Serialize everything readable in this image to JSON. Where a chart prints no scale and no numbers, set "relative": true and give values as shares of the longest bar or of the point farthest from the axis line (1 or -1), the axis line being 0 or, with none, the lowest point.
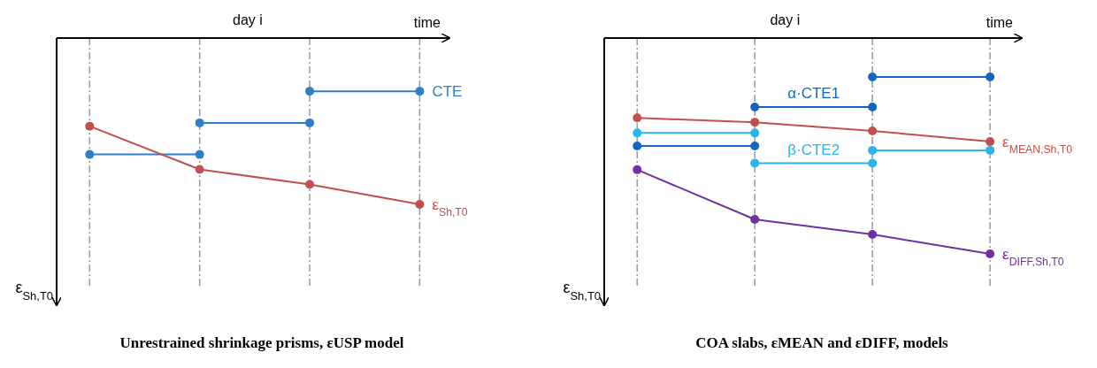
{
  "chart_data": [
    {
      "type": "line",
      "title": "Unrestrained shrinkage prisms, εUSP model",
      "xlabel": "time",
      "ylabel": "ε$_{Sh,T0}$",
      "annotations": [
        "day i"
      ],
      "relative": true,
      "categories": [
        null,
        null,
        null,
        null
      ],
      "grid": "x",
      "marker": "circle",
      "legend": "right",
      "series": [
        {
          "name": "CTE",
          "color": "#2f7fc8",
          "values": [
            null,
            null,
            -0.32,
            -0.32
          ]
        },
        {
          "color": "#2f7fc8",
          "values": [
            null,
            -0.51,
            -0.51,
            null
          ]
        },
        {
          "color": "#2f7fc8",
          "values": [
            -0.7,
            -0.7,
            null,
            null
          ]
        },
        {
          "name": "ε$_{Sh,T0}$",
          "color": "#c0504d",
          "values": [
            -0.53,
            -0.79,
            -0.88,
            -1
          ]
        }
      ]
    },
    {
      "type": "line",
      "title": "COA slabs, εMEAN and εDIFF, models",
      "xlabel": "time",
      "ylabel": "ε$_{Sh,T0}$",
      "annotations": [
        "day i"
      ],
      "relative": true,
      "categories": [
        null,
        null,
        null,
        null
      ],
      "grid": "x",
      "marker": "circle",
      "legend": "right",
      "series": [
        {
          "name": "α·CTE1",
          "color": "#1565c0",
          "values": [
            null,
            -0.32,
            -0.32,
            null
          ]
        },
        {
          "color": "#1565c0",
          "values": [
            -0.5,
            -0.5,
            null,
            null
          ]
        },
        {
          "color": "#1565c0",
          "values": [
            null,
            null,
            -0.18,
            -0.18
          ]
        },
        {
          "name": "β·CTE2",
          "color": "#2ab4ea",
          "values": [
            null,
            -0.58,
            -0.58,
            null
          ]
        },
        {
          "color": "#2ab4ea",
          "values": [
            -0.44,
            -0.44,
            null,
            null
          ]
        },
        {
          "color": "#2ab4ea",
          "values": [
            null,
            null,
            -0.52,
            -0.52
          ]
        },
        {
          "name": "ε$_{MEAN,Sh,T0}$",
          "color": "#c0504d",
          "values": [
            -0.37,
            -0.39,
            -0.43,
            -0.48
          ]
        },
        {
          "name": "ε$_{DIFF,Sh,T0}$",
          "color": "#7030a0",
          "values": [
            -0.61,
            -0.84,
            -0.91,
            -1
          ]
        }
      ]
    }
  ]
}
